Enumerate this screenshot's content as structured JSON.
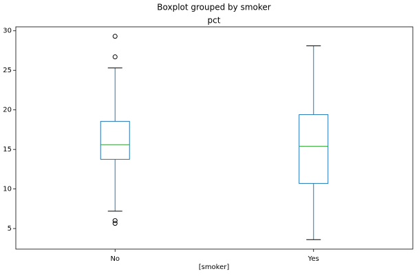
{
  "chart_data": {
    "type": "box",
    "title": "Boxplot grouped by smoker",
    "subtitle": "pct",
    "x_label": "[smoker]",
    "categories": [
      "No",
      "Yes"
    ],
    "boxes": [
      {
        "whislo": 7.2,
        "q1": 13.75,
        "med": 15.6,
        "q3": 18.55,
        "whishi": 25.3,
        "fliers": [
          29.3,
          26.7,
          6.0,
          5.65
        ]
      },
      {
        "whislo": 3.6,
        "q1": 10.7,
        "med": 15.4,
        "q3": 19.4,
        "whishi": 28.1,
        "fliers": []
      }
    ],
    "box_color": "#1f77b4",
    "median_color": "#2ca02c",
    "ylim": [
      2.4,
      30.5
    ],
    "yticks": [
      5,
      10,
      15,
      20,
      25,
      30
    ],
    "grid": false
  }
}
